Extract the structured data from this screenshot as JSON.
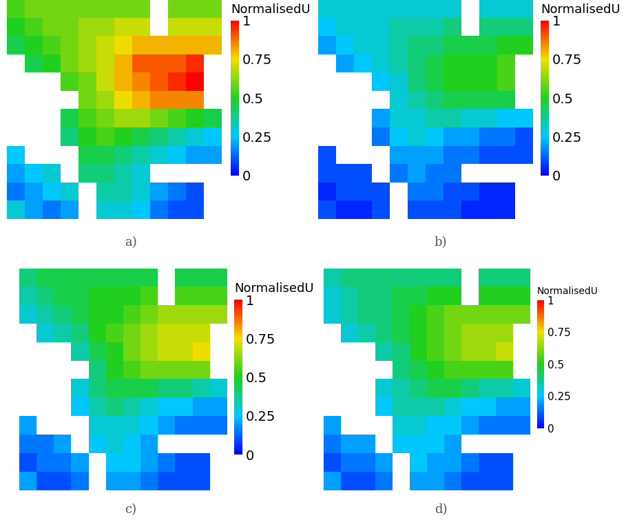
{
  "chart_data": [
    {
      "type": "heatmap",
      "title": "a)",
      "tick_labels": false,
      "colorbar_label": "NormalisedU",
      "colorbar_range": [
        0,
        1
      ],
      "colorbar_ticks": [
        0,
        0.25,
        0.5,
        0.75,
        1
      ],
      "cells": [
        [
          0.55,
          0.6,
          0.6,
          0.6,
          0.6,
          0.6,
          0.6,
          0.6,
          null,
          0.6,
          0.6,
          0.6
        ],
        [
          0.5,
          0.55,
          0.6,
          0.6,
          0.65,
          0.65,
          0.7,
          0.7,
          null,
          0.7,
          0.7,
          0.7
        ],
        [
          0.45,
          0.5,
          0.55,
          0.6,
          0.65,
          0.7,
          0.75,
          0.8,
          0.8,
          0.8,
          0.8,
          0.8
        ],
        [
          null,
          0.45,
          0.5,
          0.6,
          0.65,
          0.7,
          0.8,
          0.9,
          0.9,
          0.9,
          0.95,
          null
        ],
        [
          null,
          null,
          null,
          0.55,
          0.6,
          0.7,
          0.8,
          0.85,
          0.9,
          0.95,
          1.0,
          null
        ],
        [
          null,
          null,
          null,
          null,
          0.6,
          0.65,
          0.75,
          0.8,
          0.85,
          0.85,
          0.85,
          null
        ],
        [
          null,
          null,
          null,
          0.45,
          0.55,
          0.6,
          0.65,
          0.65,
          0.6,
          0.55,
          0.5,
          0.45
        ],
        [
          null,
          null,
          null,
          0.4,
          0.5,
          0.55,
          0.5,
          0.45,
          0.4,
          0.35,
          0.3,
          0.25
        ],
        [
          0.25,
          null,
          null,
          null,
          0.45,
          0.45,
          0.4,
          0.35,
          0.3,
          0.25,
          0.2,
          0.2
        ],
        [
          0.2,
          0.25,
          0.3,
          null,
          0.4,
          0.4,
          0.35,
          0.3,
          null,
          null,
          null,
          null
        ],
        [
          0.15,
          0.2,
          0.25,
          0.3,
          null,
          0.35,
          0.35,
          0.3,
          0.2,
          0.15,
          0.1,
          null
        ],
        [
          0.3,
          0.2,
          0.15,
          0.2,
          null,
          0.3,
          0.3,
          0.25,
          0.15,
          0.1,
          0.1,
          null
        ]
      ]
    },
    {
      "type": "heatmap",
      "title": "b)",
      "tick_labels": false,
      "colorbar_label": "NormalisedU",
      "colorbar_range": [
        0,
        1
      ],
      "colorbar_ticks": [
        0,
        0.25,
        0.5,
        0.75,
        1
      ],
      "cells": [
        [
          0.3,
          0.3,
          0.3,
          0.3,
          0.3,
          0.3,
          0.3,
          0.3,
          null,
          0.3,
          0.3,
          0.3
        ],
        [
          0.25,
          0.3,
          0.3,
          0.3,
          0.35,
          0.35,
          0.35,
          0.4,
          null,
          0.4,
          0.4,
          0.4
        ],
        [
          0.2,
          0.25,
          0.3,
          0.3,
          0.35,
          0.4,
          0.4,
          0.45,
          0.45,
          0.45,
          0.5,
          0.5
        ],
        [
          null,
          0.2,
          0.25,
          0.3,
          0.35,
          0.4,
          0.45,
          0.5,
          0.5,
          0.5,
          0.55,
          null
        ],
        [
          null,
          null,
          null,
          0.25,
          0.3,
          0.4,
          0.45,
          0.5,
          0.5,
          0.5,
          0.55,
          null
        ],
        [
          null,
          null,
          null,
          null,
          0.3,
          0.35,
          0.4,
          0.45,
          0.45,
          0.45,
          0.45,
          null
        ],
        [
          null,
          null,
          null,
          0.2,
          0.3,
          0.3,
          0.35,
          0.35,
          0.3,
          0.3,
          0.25,
          0.25
        ],
        [
          null,
          null,
          null,
          0.15,
          0.25,
          0.3,
          0.25,
          0.2,
          0.2,
          0.15,
          0.15,
          0.1
        ],
        [
          0.1,
          null,
          null,
          null,
          0.2,
          0.2,
          0.2,
          0.15,
          0.15,
          0.1,
          0.1,
          0.1
        ],
        [
          0.1,
          0.1,
          0.1,
          null,
          0.15,
          0.2,
          0.15,
          0.15,
          null,
          null,
          null,
          null
        ],
        [
          0.05,
          0.1,
          0.1,
          0.1,
          null,
          0.15,
          0.15,
          0.1,
          0.1,
          0.05,
          0.05,
          null
        ],
        [
          0.1,
          0.05,
          0.05,
          0.1,
          null,
          0.1,
          0.1,
          0.1,
          0.05,
          0.05,
          0.05,
          null
        ]
      ]
    },
    {
      "type": "heatmap",
      "title": "c)",
      "tick_labels": false,
      "colorbar_label": "NormalisedU",
      "colorbar_range": [
        0,
        1
      ],
      "colorbar_ticks": [
        0,
        0.25,
        0.5,
        0.75,
        1
      ],
      "cells": [
        [
          0.4,
          0.45,
          0.45,
          0.45,
          0.45,
          0.45,
          0.45,
          0.45,
          null,
          0.45,
          0.45,
          0.45
        ],
        [
          0.35,
          0.4,
          0.45,
          0.45,
          0.5,
          0.5,
          0.5,
          0.55,
          null,
          0.55,
          0.55,
          0.55
        ],
        [
          0.3,
          0.35,
          0.4,
          0.45,
          0.5,
          0.5,
          0.55,
          0.6,
          0.65,
          0.65,
          0.65,
          0.65
        ],
        [
          null,
          0.3,
          0.35,
          0.4,
          0.5,
          0.55,
          0.6,
          0.65,
          0.7,
          0.7,
          0.7,
          null
        ],
        [
          null,
          null,
          null,
          0.35,
          0.45,
          0.5,
          0.6,
          0.65,
          0.7,
          0.7,
          0.75,
          null
        ],
        [
          null,
          null,
          null,
          null,
          0.4,
          0.5,
          0.55,
          0.6,
          0.6,
          0.6,
          0.6,
          null
        ],
        [
          null,
          null,
          null,
          0.3,
          0.4,
          0.45,
          0.45,
          0.45,
          0.4,
          0.4,
          0.35,
          0.3
        ],
        [
          null,
          null,
          null,
          0.25,
          0.35,
          0.4,
          0.35,
          0.3,
          0.25,
          0.25,
          0.2,
          0.2
        ],
        [
          0.2,
          null,
          null,
          null,
          0.3,
          0.3,
          0.3,
          0.25,
          0.2,
          0.15,
          0.15,
          0.15
        ],
        [
          0.15,
          0.15,
          0.2,
          null,
          0.25,
          0.3,
          0.25,
          0.2,
          null,
          null,
          null,
          null
        ],
        [
          0.1,
          0.15,
          0.15,
          0.2,
          null,
          0.25,
          0.25,
          0.2,
          0.15,
          0.1,
          0.1,
          null
        ],
        [
          0.2,
          0.1,
          0.1,
          0.15,
          null,
          0.2,
          0.2,
          0.15,
          0.1,
          0.1,
          0.1,
          null
        ]
      ]
    },
    {
      "type": "heatmap",
      "title": "d)",
      "tick_labels": false,
      "colorbar_label": "NormalisedU",
      "colorbar_range": [
        0,
        1
      ],
      "colorbar_ticks": [
        0,
        0.25,
        0.5,
        0.75,
        1
      ],
      "cells": [
        [
          0.35,
          0.4,
          0.4,
          0.4,
          0.4,
          0.4,
          0.4,
          0.4,
          null,
          0.4,
          0.4,
          0.4
        ],
        [
          0.3,
          0.35,
          0.4,
          0.4,
          0.45,
          0.45,
          0.5,
          0.5,
          null,
          0.5,
          0.5,
          0.5
        ],
        [
          0.3,
          0.35,
          0.4,
          0.4,
          0.45,
          0.5,
          0.55,
          0.6,
          0.6,
          0.6,
          0.6,
          0.6
        ],
        [
          null,
          0.3,
          0.35,
          0.4,
          0.45,
          0.5,
          0.55,
          0.6,
          0.65,
          0.65,
          0.65,
          null
        ],
        [
          null,
          null,
          null,
          0.35,
          0.4,
          0.5,
          0.55,
          0.6,
          0.65,
          0.65,
          0.7,
          null
        ],
        [
          null,
          null,
          null,
          null,
          0.4,
          0.45,
          0.5,
          0.55,
          0.55,
          0.55,
          0.55,
          null
        ],
        [
          null,
          null,
          null,
          0.3,
          0.35,
          0.4,
          0.45,
          0.45,
          0.4,
          0.35,
          0.35,
          0.3
        ],
        [
          null,
          null,
          null,
          0.25,
          0.35,
          0.35,
          0.35,
          0.3,
          0.25,
          0.25,
          0.2,
          0.2
        ],
        [
          0.2,
          null,
          null,
          null,
          0.3,
          0.3,
          0.25,
          0.25,
          0.2,
          0.15,
          0.15,
          0.15
        ],
        [
          0.15,
          0.2,
          0.2,
          null,
          0.25,
          0.25,
          0.25,
          0.2,
          null,
          null,
          null,
          null
        ],
        [
          0.1,
          0.15,
          0.15,
          0.2,
          null,
          0.25,
          0.2,
          0.2,
          0.15,
          0.1,
          0.1,
          null
        ],
        [
          0.2,
          0.1,
          0.1,
          0.15,
          null,
          0.2,
          0.2,
          0.15,
          0.1,
          0.1,
          0.1,
          null
        ]
      ]
    }
  ]
}
